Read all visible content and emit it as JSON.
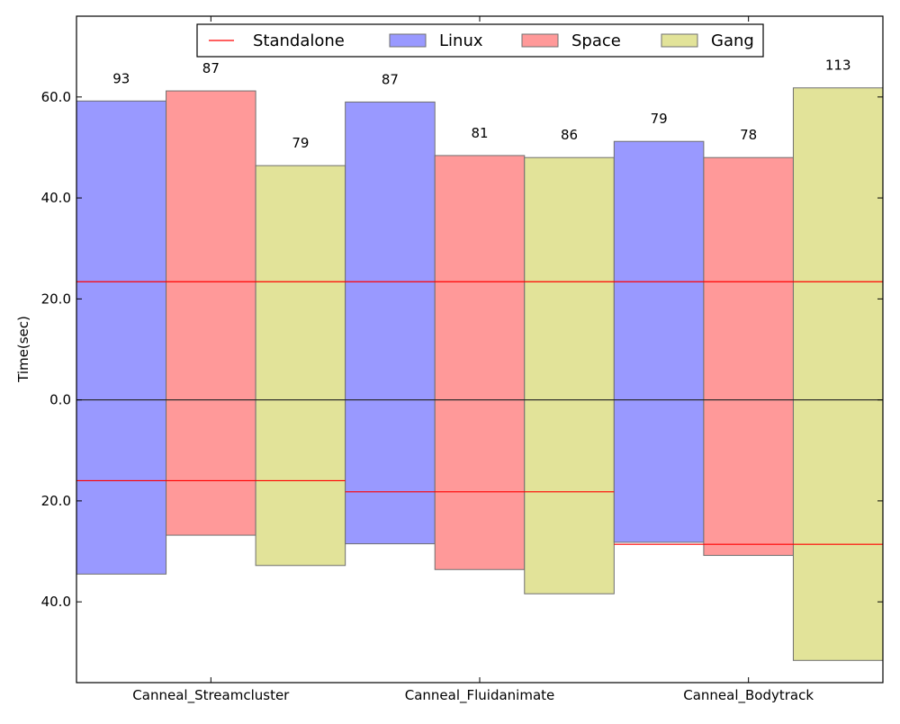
{
  "chart_data": {
    "type": "bar",
    "title": "",
    "xlabel": "",
    "ylabel": "Time(sec)",
    "categories": [
      "Canneal_Streamcluster",
      "Canneal_Fluidanimate",
      "Canneal_Bodytrack"
    ],
    "ylim": [
      -56,
      76
    ],
    "yticks": [
      -40,
      -20,
      0,
      20,
      40,
      60
    ],
    "ytick_labels": [
      "40.0",
      "20.0",
      "0.0",
      "20.0",
      "40.0",
      "60.0"
    ],
    "series": [
      {
        "name": "Linux",
        "color": "#9999ff",
        "upper": [
          59.2,
          59.0,
          51.2
        ],
        "lower": [
          -34.5,
          -28.5,
          -28.2
        ],
        "labels": [
          "93",
          "87",
          "79"
        ]
      },
      {
        "name": "Space",
        "color": "#ff9999",
        "upper": [
          61.2,
          48.4,
          48.0
        ],
        "lower": [
          -26.8,
          -33.6,
          -30.8
        ],
        "labels": [
          "87",
          "81",
          "78"
        ]
      },
      {
        "name": "Gang",
        "color": "#e2e399",
        "upper": [
          46.4,
          48.0,
          61.8
        ],
        "lower": [
          -32.8,
          -38.4,
          -51.6
        ],
        "labels": [
          "79",
          "86",
          "113"
        ]
      }
    ],
    "standalone": {
      "name": "Standalone",
      "color": "#ff0000",
      "upper": [
        23.4,
        23.4,
        23.4
      ],
      "lower": [
        -16.0,
        -18.2,
        -28.6
      ]
    },
    "zero_line": true,
    "grid": false,
    "legend": {
      "placement": "top-center",
      "entries": [
        "Standalone",
        "Linux",
        "Space",
        "Gang"
      ]
    }
  }
}
